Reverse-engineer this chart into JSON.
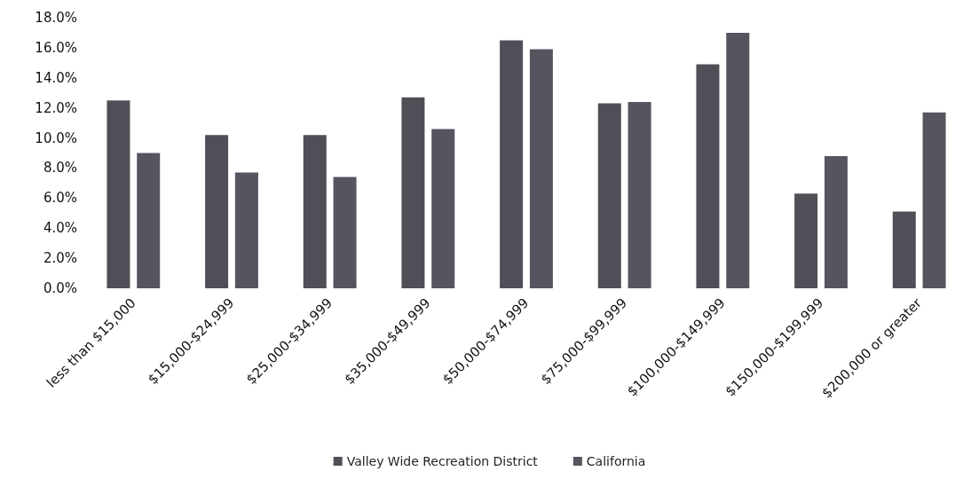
{
  "chart_data": {
    "type": "bar",
    "categories": [
      "less than $15,000",
      "$15,000-$24,999",
      "$25,000-$34,999",
      "$35,000-$49,999",
      "$50,000-$74,999",
      "$75,000-$99,999",
      "$100,000-$149,999",
      "$150,000-$199,999",
      "$200,000 or greater"
    ],
    "series": [
      {
        "name": "Valley Wide Recreation District",
        "color": "#4f4f57",
        "values": [
          12.5,
          10.2,
          10.2,
          12.7,
          16.5,
          12.3,
          14.9,
          6.3,
          5.1
        ]
      },
      {
        "name": "California",
        "color": "#55555f",
        "values": [
          9.0,
          7.7,
          7.4,
          10.6,
          15.9,
          12.4,
          17.0,
          8.8,
          11.7
        ]
      }
    ],
    "ylim": [
      0,
      18
    ],
    "yticks": [
      {
        "value": 0,
        "label": "0.0%"
      },
      {
        "value": 2,
        "label": "2.0%"
      },
      {
        "value": 4,
        "label": "4.0%"
      },
      {
        "value": 6,
        "label": "6.0%"
      },
      {
        "value": 8,
        "label": "8.0%"
      },
      {
        "value": 10,
        "label": "10.0%"
      },
      {
        "value": 12,
        "label": "12.0%"
      },
      {
        "value": 14,
        "label": "14.0%"
      },
      {
        "value": 16,
        "label": "16.0%"
      },
      {
        "value": 18,
        "label": "18.0%"
      }
    ],
    "grid": false,
    "legend": "bottom"
  }
}
